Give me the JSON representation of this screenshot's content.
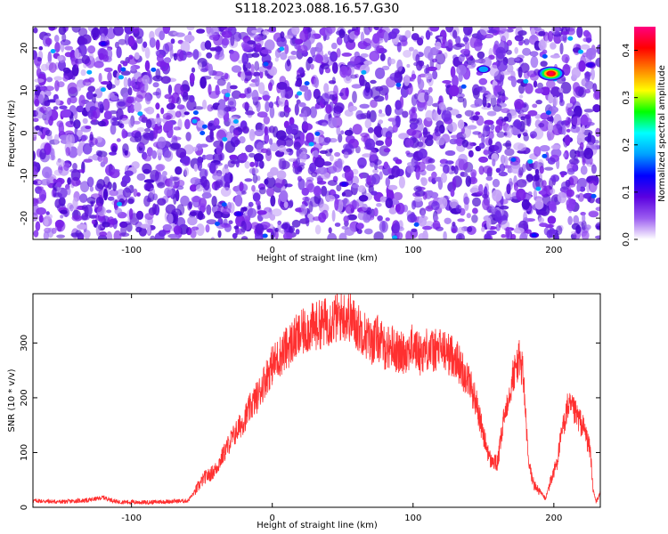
{
  "title": "S118.2023.088.16.57.G30",
  "chart_data": [
    {
      "type": "heatmap",
      "xlabel": "Height of straight line (km)",
      "ylabel": "Frequency (Hz)",
      "xlim": [
        -170,
        233
      ],
      "ylim": [
        -25,
        25
      ],
      "xticks": [
        -100,
        0,
        100,
        200
      ],
      "yticks": [
        -20,
        -10,
        0,
        10,
        20
      ],
      "colorbar": {
        "label": "Normalized spectral amplitude",
        "range": [
          0.0,
          0.45
        ],
        "ticks": [
          0.0,
          0.1,
          0.2,
          0.3,
          0.4
        ],
        "colors": [
          "#ffffff",
          "#9b5cf0",
          "#5a00e0",
          "#0000ff",
          "#00a0ff",
          "#00ffff",
          "#00ff00",
          "#ffff00",
          "#ff8000",
          "#ff0000",
          "#ff0080"
        ]
      },
      "hotspots": [
        {
          "x": 198,
          "y": 14,
          "value": 0.43
        },
        {
          "x": 150,
          "y": 15,
          "value": 0.18
        },
        {
          "x": 186,
          "y": -24,
          "value": 0.14
        },
        {
          "x": -120,
          "y": 21,
          "value": 0.12
        },
        {
          "x": 51,
          "y": -12,
          "value": 0.12
        },
        {
          "x": -24,
          "y": -19,
          "value": 0.12
        },
        {
          "x": 226,
          "y": 16,
          "value": 0.11
        }
      ]
    },
    {
      "type": "line",
      "xlabel": "Height of straight line (km)",
      "ylabel": "SNR (10 * v/v)",
      "xlim": [
        -170,
        233
      ],
      "ylim": [
        0,
        390
      ],
      "xticks": [
        -100,
        0,
        100,
        200
      ],
      "yticks": [
        0,
        100,
        200,
        300
      ],
      "color": "#ff3030",
      "x": [
        -170,
        -150,
        -130,
        -120,
        -110,
        -90,
        -70,
        -60,
        -56,
        -52,
        -48,
        -44,
        -40,
        -35,
        -30,
        -25,
        -20,
        -15,
        -10,
        -5,
        0,
        5,
        10,
        15,
        20,
        25,
        30,
        35,
        40,
        45,
        50,
        55,
        60,
        65,
        70,
        75,
        80,
        85,
        90,
        95,
        100,
        105,
        110,
        115,
        120,
        125,
        130,
        135,
        140,
        145,
        150,
        155,
        160,
        165,
        170,
        175,
        178,
        182,
        186,
        190,
        194,
        198,
        202,
        206,
        210,
        214,
        218,
        222,
        226,
        228,
        230,
        233
      ],
      "y": [
        12,
        10,
        13,
        18,
        10,
        9,
        11,
        12,
        25,
        40,
        55,
        60,
        70,
        95,
        120,
        140,
        160,
        185,
        205,
        235,
        260,
        275,
        290,
        305,
        315,
        325,
        330,
        335,
        340,
        345,
        350,
        348,
        330,
        320,
        300,
        310,
        290,
        295,
        280,
        285,
        295,
        280,
        290,
        285,
        290,
        280,
        275,
        250,
        230,
        190,
        130,
        85,
        80,
        170,
        230,
        270,
        250,
        80,
        40,
        30,
        15,
        50,
        80,
        140,
        185,
        175,
        160,
        140,
        100,
        30,
        10,
        25
      ]
    }
  ]
}
